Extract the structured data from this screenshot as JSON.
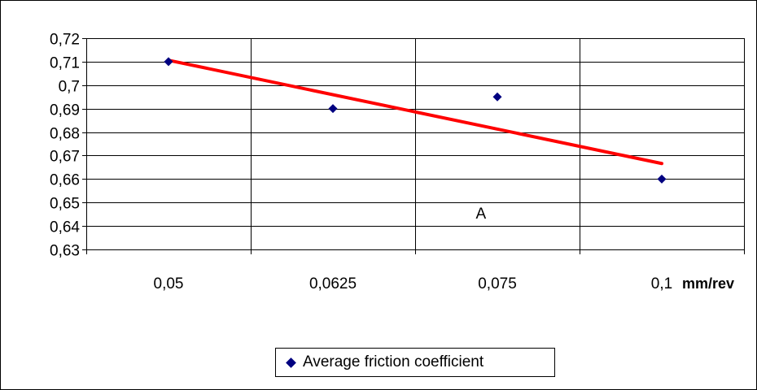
{
  "chart_data": {
    "type": "scatter",
    "x_categories": [
      "0,05",
      "0,0625",
      "0,075",
      "0,1"
    ],
    "x_unit": "mm/rev",
    "y_ticks": [
      "0,63",
      "0,64",
      "0,65",
      "0,66",
      "0,67",
      "0,68",
      "0,69",
      "0,7",
      "0,71",
      "0,72"
    ],
    "ylim": [
      0.63,
      0.72
    ],
    "grid": true,
    "legend_position": "bottom",
    "series": [
      {
        "name": "Average friction coefficient",
        "marker": "diamond",
        "color": "#000080",
        "points": [
          {
            "x": "0,05",
            "y": 0.71
          },
          {
            "x": "0,0625",
            "y": 0.69
          },
          {
            "x": "0,075",
            "y": 0.695
          },
          {
            "x": "0,1",
            "y": 0.66
          }
        ]
      }
    ],
    "trendline": {
      "type": "linear",
      "color": "#ff0000",
      "start": {
        "x": "0,05",
        "y": 0.7106
      },
      "end": {
        "x": "0,1",
        "y": 0.6666
      }
    },
    "annotations": [
      {
        "text": "A",
        "x": 2.4,
        "y": 0.6455
      }
    ]
  }
}
